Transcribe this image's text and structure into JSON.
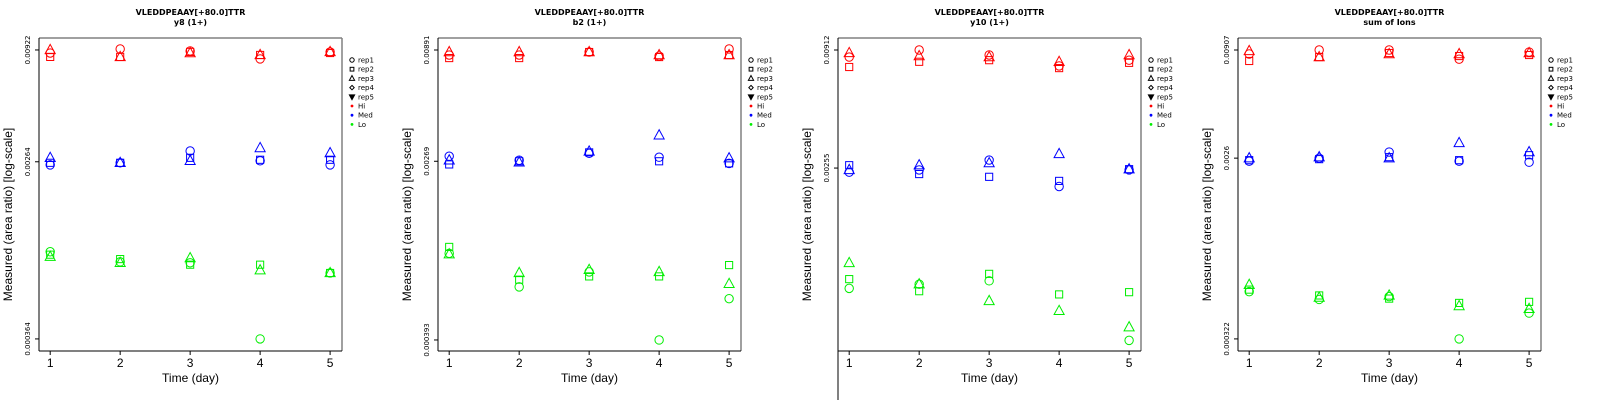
{
  "colors": {
    "Hi": "#ff0000",
    "Med": "#0000ff",
    "Lo": "#00ee00",
    "frame": "#000000",
    "frame_right": "#808080"
  },
  "legend": {
    "items": [
      {
        "label": "rep1",
        "symbol": "circle"
      },
      {
        "label": "rep2",
        "symbol": "square"
      },
      {
        "label": "rep3",
        "symbol": "triangle-up"
      },
      {
        "label": "rep4",
        "symbol": "diamond"
      },
      {
        "label": "rep5",
        "symbol": "triangle-down"
      },
      {
        "label": "Hi",
        "symbol": "dot",
        "color_key": "Hi"
      },
      {
        "label": "Med",
        "symbol": "dot",
        "color_key": "Med"
      },
      {
        "label": "Lo",
        "symbol": "dot",
        "color_key": "Lo"
      }
    ]
  },
  "chart_data": [
    {
      "type": "scatter",
      "title": "VLEDDPEAAY[+80.0]TTR",
      "subtitle": "y8 (1+)",
      "xlabel": "Time (day)",
      "ylabel": "Measured (area ratio) [log-scale]",
      "yscale": "log",
      "xlim": [
        0.84,
        5.17
      ],
      "ylim": [
        0.000318,
        0.01054
      ],
      "x_ticks": [
        "1",
        "2",
        "3",
        "4",
        "5"
      ],
      "y_ticks": [
        {
          "value": 0.00922,
          "label": "0.00922"
        },
        {
          "value": 0.00264,
          "label": "0.00264"
        },
        {
          "value": 0.000364,
          "label": "0.000364"
        }
      ],
      "x": [
        1,
        2,
        3,
        4,
        5
      ],
      "series": [
        {
          "name": "Hi",
          "rep": "rep1",
          "values": [
            0.00891,
            0.00932,
            0.00912,
            0.00834,
            0.00902
          ]
        },
        {
          "name": "Hi",
          "rep": "rep2",
          "values": [
            0.00853,
            0.00853,
            0.00902,
            0.00872,
            0.00891
          ]
        },
        {
          "name": "Hi",
          "rep": "rep3",
          "values": [
            0.00922,
            0.00853,
            0.00891,
            0.00872,
            0.00902
          ]
        },
        {
          "name": "Med",
          "rep": "rep1",
          "values": [
            0.00255,
            0.00261,
            0.00298,
            0.00267,
            0.00255
          ]
        },
        {
          "name": "Med",
          "rep": "rep2",
          "values": [
            0.00261,
            0.00261,
            0.00276,
            0.0027,
            0.0027
          ]
        },
        {
          "name": "Med",
          "rep": "rep3",
          "values": [
            0.00276,
            0.00261,
            0.00267,
            0.00308,
            0.00291
          ]
        },
        {
          "name": "Lo",
          "rep": "rep1",
          "values": [
            0.000965,
            0.000862,
            0.000853,
            0.000364,
            0.000761
          ]
        },
        {
          "name": "Lo",
          "rep": "rep2",
          "values": [
            0.000934,
            0.000889,
            0.000835,
            0.000835,
            0.000761
          ]
        },
        {
          "name": "Lo",
          "rep": "rep3",
          "values": [
            0.000913,
            0.000853,
            0.000899,
            0.000785,
            0.000761
          ]
        }
      ]
    },
    {
      "type": "scatter",
      "title": "VLEDDPEAAY[+80.0]TTR",
      "subtitle": "b2 (1+)",
      "xlabel": "Time (day)",
      "ylabel": "Measured (area ratio) [log-scale]",
      "yscale": "log",
      "xlim": [
        0.84,
        5.17
      ],
      "ylim": [
        0.000349,
        0.01014
      ],
      "x_ticks": [
        "1",
        "2",
        "3",
        "4",
        "5"
      ],
      "y_ticks": [
        {
          "value": 0.00891,
          "label": "0.00891"
        },
        {
          "value": 0.00269,
          "label": "0.00269"
        },
        {
          "value": 0.000393,
          "label": "0.000393"
        }
      ],
      "x": [
        1,
        2,
        3,
        4,
        5
      ],
      "series": [
        {
          "name": "Hi",
          "rep": "rep1",
          "values": [
            0.00844,
            0.00844,
            0.00872,
            0.00835,
            0.00901
          ]
        },
        {
          "name": "Hi",
          "rep": "rep2",
          "values": [
            0.00817,
            0.00817,
            0.00872,
            0.00826,
            0.00844
          ]
        },
        {
          "name": "Hi",
          "rep": "rep3",
          "values": [
            0.00872,
            0.00872,
            0.00872,
            0.00844,
            0.00844
          ]
        },
        {
          "name": "Med",
          "rep": "rep1",
          "values": [
            0.00284,
            0.00272,
            0.00293,
            0.00281,
            0.00263
          ]
        },
        {
          "name": "Med",
          "rep": "rep2",
          "values": [
            0.0026,
            0.00269,
            0.00296,
            0.00269,
            0.00263
          ]
        },
        {
          "name": "Med",
          "rep": "rep3",
          "values": [
            0.00272,
            0.00266,
            0.00299,
            0.00356,
            0.00278
          ]
        },
        {
          "name": "Lo",
          "rep": "rep1",
          "values": [
            0.000999,
            0.000696,
            0.000818,
            0.000393,
            0.000613
          ]
        },
        {
          "name": "Lo",
          "rep": "rep2",
          "values": [
            0.00107,
            0.000752,
            0.000779,
            0.000779,
            0.00088
          ]
        },
        {
          "name": "Lo",
          "rep": "rep3",
          "values": [
            0.000989,
            0.000809,
            0.000836,
            0.000818,
            0.000719
          ]
        }
      ]
    },
    {
      "type": "scatter",
      "title": "VLEDDPEAAY[+80.0]TTR",
      "subtitle": "y10 (1+)",
      "xlabel": "Time (day)",
      "ylabel": "Measured (area ratio) [log-scale]",
      "yscale": "log",
      "xlim": [
        0.84,
        5.17
      ],
      "ylim": [
        0.000354,
        0.01038
      ],
      "x_ticks": [
        "1",
        "2",
        "3",
        "4",
        "5"
      ],
      "y_ticks": [
        {
          "value": 0.00912,
          "label": "0.00912"
        },
        {
          "value": 0.00255,
          "label": "0.00255"
        }
      ],
      "x": [
        1,
        2,
        3,
        4,
        5
      ],
      "series": [
        {
          "name": "Hi",
          "rep": "rep1",
          "values": [
            0.00845,
            0.00912,
            0.00864,
            0.00768,
            0.00817
          ]
        },
        {
          "name": "Hi",
          "rep": "rep2",
          "values": [
            0.00759,
            0.00803,
            0.00817,
            0.0075,
            0.00794
          ]
        },
        {
          "name": "Hi",
          "rep": "rep3",
          "values": [
            0.00883,
            0.00854,
            0.00845,
            0.00803,
            0.00864
          ]
        },
        {
          "name": "Med",
          "rep": "rep1",
          "values": [
            0.00244,
            0.0025,
            0.00278,
            0.00209,
            0.0025
          ]
        },
        {
          "name": "Med",
          "rep": "rep2",
          "values": [
            0.00263,
            0.00239,
            0.00232,
            0.00222,
            0.00252
          ]
        },
        {
          "name": "Med",
          "rep": "rep3",
          "values": [
            0.0025,
            0.00263,
            0.00269,
            0.00297,
            0.00252
          ]
        },
        {
          "name": "Lo",
          "rep": "rep1",
          "values": [
            0.000696,
            0.000728,
            0.000755,
            null,
            0.000397
          ]
        },
        {
          "name": "Lo",
          "rep": "rep2",
          "values": [
            0.000769,
            0.000675,
            0.000814,
            0.000652,
            0.000668
          ]
        },
        {
          "name": "Lo",
          "rep": "rep3",
          "values": [
            0.000916,
            0.000728,
            0.000608,
            0.000546,
            0.000458
          ]
        }
      ]
    },
    {
      "type": "scatter",
      "title": "VLEDDPEAAY[+80.0]TTR",
      "subtitle": "sum of Ions",
      "xlabel": "Time (day)",
      "ylabel": "Measured (area ratio) [log-scale]",
      "yscale": "log",
      "xlim": [
        0.84,
        5.17
      ],
      "ylim": [
        0.00028,
        0.01042
      ],
      "x_ticks": [
        "1",
        "2",
        "3",
        "4",
        "5"
      ],
      "y_ticks": [
        {
          "value": 0.00907,
          "label": "0.00907"
        },
        {
          "value": 0.0026,
          "label": "0.0026"
        },
        {
          "value": 0.000322,
          "label": "0.000322"
        }
      ],
      "x": [
        1,
        2,
        3,
        4,
        5
      ],
      "series": [
        {
          "name": "Hi",
          "rep": "rep1",
          "values": [
            0.00866,
            0.00907,
            0.00907,
            0.00816,
            0.00886
          ]
        },
        {
          "name": "Hi",
          "rep": "rep2",
          "values": [
            0.00799,
            0.00836,
            0.00876,
            0.00846,
            0.00856
          ]
        },
        {
          "name": "Hi",
          "rep": "rep3",
          "values": [
            0.00897,
            0.00836,
            0.00866,
            0.00866,
            0.00876
          ]
        },
        {
          "name": "Med",
          "rep": "rep1",
          "values": [
            0.00251,
            0.0026,
            0.00279,
            0.00251,
            0.00248
          ]
        },
        {
          "name": "Med",
          "rep": "rep2",
          "values": [
            0.00254,
            0.00257,
            0.00263,
            0.00254,
            0.00269
          ]
        },
        {
          "name": "Med",
          "rep": "rep3",
          "values": [
            0.0026,
            0.00263,
            0.0026,
            0.0031,
            0.00279
          ]
        },
        {
          "name": "Lo",
          "rep": "rep1",
          "values": [
            0.000556,
            0.000508,
            0.000525,
            0.000322,
            0.000434
          ]
        },
        {
          "name": "Lo",
          "rep": "rep2",
          "values": [
            0.000569,
            0.000532,
            0.000513,
            0.000488,
            0.000494
          ]
        },
        {
          "name": "Lo",
          "rep": "rep3",
          "values": [
            0.000602,
            0.000519,
            0.000532,
            0.000471,
            0.000456
          ]
        }
      ]
    }
  ]
}
